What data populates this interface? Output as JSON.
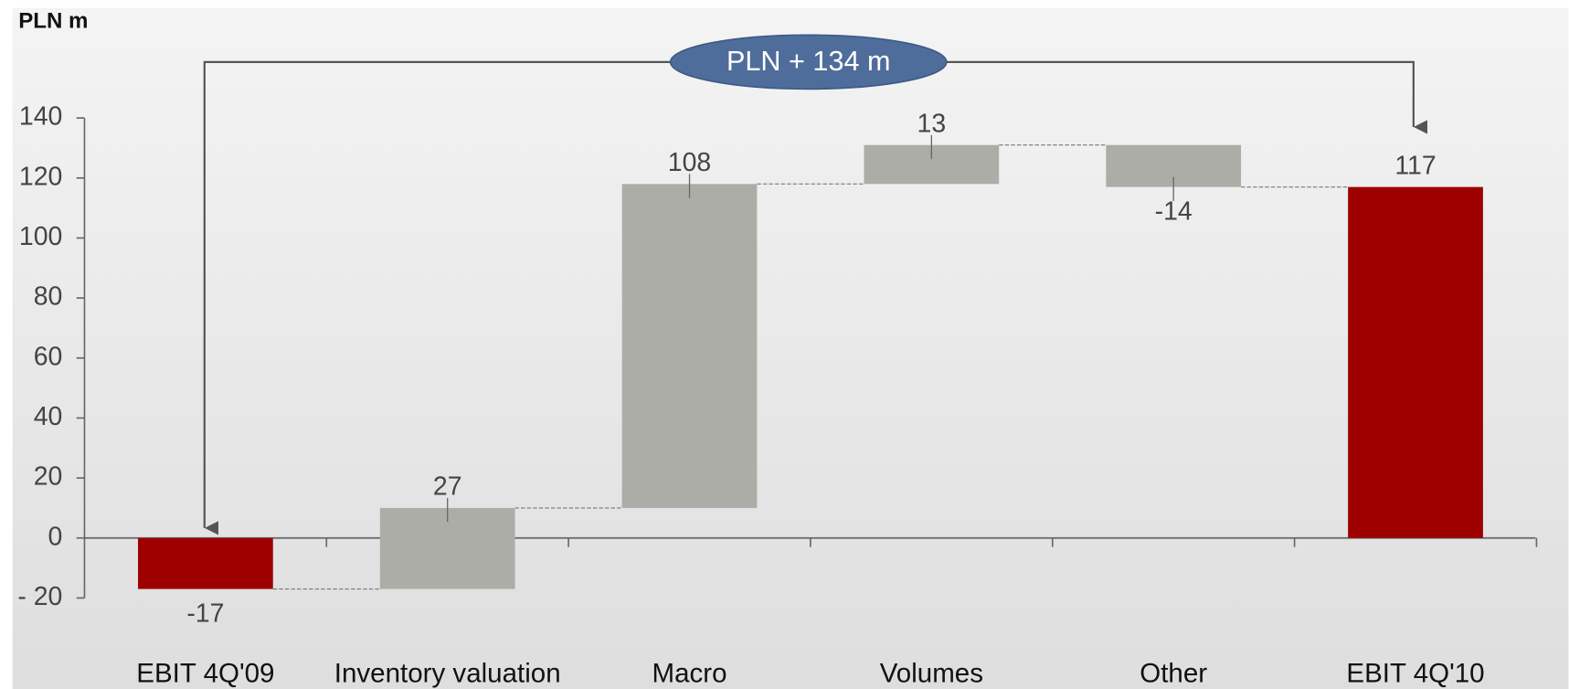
{
  "chart_data": {
    "type": "waterfall",
    "unit_label": "PLN m",
    "annotation": "PLN + 134 m",
    "categories": [
      "EBIT 4Q'09",
      "Inventory valuation",
      "Macro",
      "Volumes",
      "Other",
      "EBIT 4Q'10"
    ],
    "values": [
      -17,
      27,
      108,
      13,
      -14,
      117
    ],
    "colors": [
      "#9e0000",
      "#adada8",
      "#adada8",
      "#adada8",
      "#adada8",
      "#9e0000"
    ],
    "ylim": [
      -20,
      140
    ],
    "yticks": [
      {
        "value": -20,
        "label": "- 20"
      },
      0,
      20,
      40,
      60,
      80,
      100,
      120,
      140
    ]
  }
}
